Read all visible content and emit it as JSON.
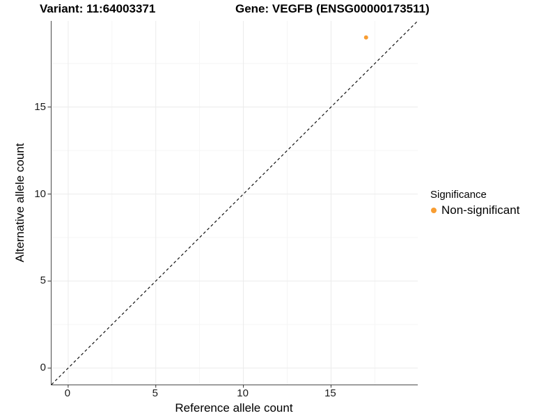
{
  "chart_data": {
    "type": "scatter",
    "title_left": "Variant: 11:64003371",
    "title_right": "Gene: VEGFB (ENSG00000173511)",
    "xlabel": "Reference allele count",
    "ylabel": "Alternative allele count",
    "xlim": [
      -0.95,
      19.95
    ],
    "ylim": [
      -0.95,
      19.95
    ],
    "xticks": [
      0,
      5,
      10,
      15
    ],
    "yticks": [
      0,
      5,
      10,
      15
    ],
    "x_minor_ticks": [
      2.5,
      7.5,
      12.5,
      17.5
    ],
    "y_minor_ticks": [
      2.5,
      7.5,
      12.5,
      17.5
    ],
    "grid": "major+minor",
    "reference_line": {
      "equation": "y = x",
      "linestyle": "dashed",
      "color": "#111111",
      "extent": "corner-to-corner"
    },
    "point_radius_px": 3,
    "series": [
      {
        "name": "Non-significant",
        "color": "#F89D32",
        "points": [
          {
            "x": 17,
            "y": 19
          }
        ]
      }
    ],
    "legend": {
      "title": "Significance",
      "position": "right",
      "items": [
        {
          "label": "Non-significant",
          "color": "#F89D32"
        }
      ]
    },
    "colors": {
      "background": "#FFFFFF",
      "grid_major": "#EBEBEB",
      "grid_minor": "#F5F5F5",
      "axis_line": "#4A4A4A",
      "tick_mark": "#333333",
      "tick_label": "#1A1A1A",
      "text": "#000000"
    }
  }
}
